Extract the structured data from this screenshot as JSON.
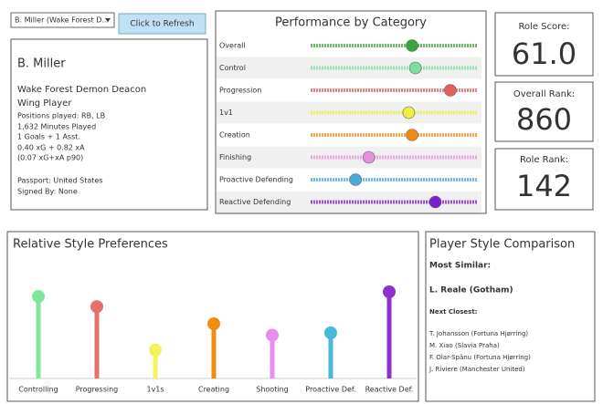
{
  "controls": {
    "player_select": "B. Miller (Wake Forest D...",
    "refresh_button": "Click to Refresh"
  },
  "player": {
    "name": "B. Miller",
    "team": "Wake Forest Demon Deacon",
    "role": "Wing Player",
    "details": [
      "Positions played: RB, LB",
      "1,632 Minutes Played",
      "1 Goals + 1 Asst.",
      "0.40 xG + 0.82 xA",
      "(0.07 xG+xA p90)"
    ],
    "passport": "Passport: United States",
    "signed_by": "Signed By: None"
  },
  "score_cards": [
    {
      "label": "Role Score:",
      "value": "61.0"
    },
    {
      "label": "Overall Rank:",
      "value": "860"
    },
    {
      "label": "Role Rank:",
      "value": "142"
    }
  ],
  "chart_data": [
    {
      "type": "dot-strip",
      "title": "Performance by Category",
      "categories": [
        "Overall",
        "Control",
        "Progression",
        "1v1",
        "Creation",
        "Finishing",
        "Proactive Defending",
        "Reactive Defending"
      ],
      "values": [
        61,
        63,
        84,
        59,
        61,
        35,
        27,
        75
      ],
      "colors": [
        "#3aa53a",
        "#7fdca0",
        "#e0605a",
        "#eeee44",
        "#ee8a1a",
        "#e58fe0",
        "#4aaad8",
        "#7b1fd0"
      ],
      "xlim": [
        0,
        100
      ]
    },
    {
      "type": "lollipop",
      "title": "Relative Style Preferences",
      "categories": [
        "Controlling",
        "Progressing",
        "1v1s",
        "Creating",
        "Shooting",
        "Proactive Def.",
        "Reactive Def."
      ],
      "values": [
        72,
        63,
        25,
        48,
        38,
        40,
        76
      ],
      "colors": [
        "#7de89a",
        "#e8706a",
        "#f4f45a",
        "#f08c10",
        "#e88ef0",
        "#4ab8d8",
        "#8e2fd0"
      ],
      "ylim": [
        0,
        100
      ]
    }
  ],
  "comparison": {
    "title": "Player Style Comparison",
    "most_similar_label": "Most Similar:",
    "most_similar": "L. Reale (Gotham)",
    "next_closest_label": "Next Closest:",
    "next_closest": [
      "T. Johansson (Fortuna Hjørring)",
      "M. Xiao (Slavia Praha)",
      "F. Olar-Spânu (Fortuna Hjørring)",
      "J. Riviere (Manchester United)"
    ]
  }
}
